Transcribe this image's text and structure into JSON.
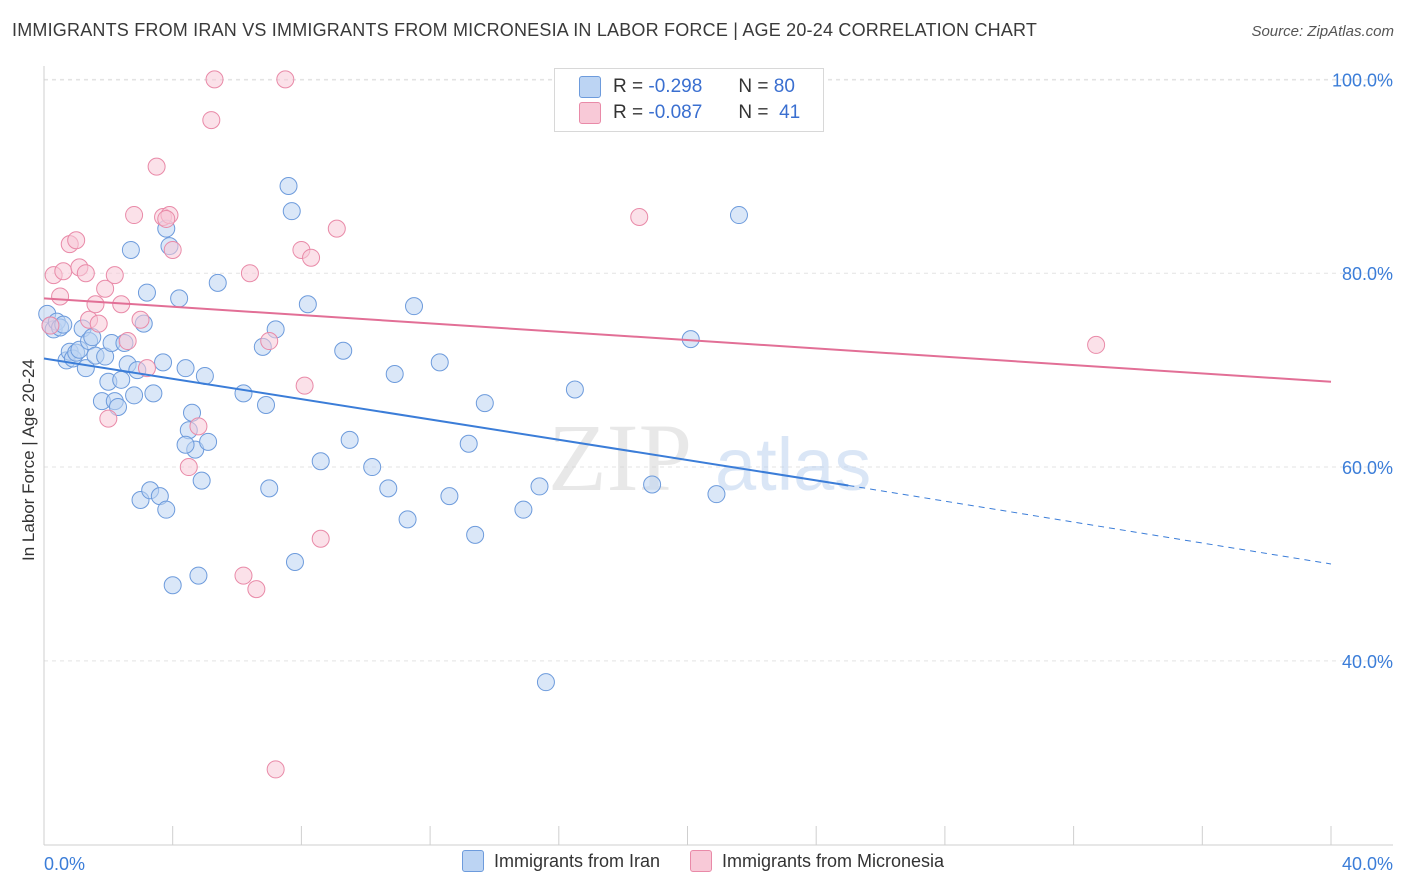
{
  "header": {
    "title": "IMMIGRANTS FROM IRAN VS IMMIGRANTS FROM MICRONESIA IN LABOR FORCE | AGE 20-24 CORRELATION CHART",
    "source": "Source: ZipAtlas.com"
  },
  "watermark": {
    "zip": "ZIP",
    "atlas": "atlas"
  },
  "stats": [
    {
      "r_label": "R =",
      "r_value": "-0.298",
      "n_label": "N =",
      "n_value": "80",
      "color": "#a9c7ef"
    },
    {
      "r_label": "R =",
      "r_value": "-0.087",
      "n_label": "N =",
      "n_value": "41",
      "color": "#f5b8c9"
    }
  ],
  "legend": [
    {
      "label": "Immigrants from Iran",
      "fill": "#bcd4f3",
      "stroke": "#6d9bdc"
    },
    {
      "label": "Immigrants from Micronesia",
      "fill": "#f8c9d7",
      "stroke": "#e98aa8"
    }
  ],
  "chart_data": {
    "type": "scatter",
    "title": "IMMIGRANTS FROM IRAN VS IMMIGRANTS FROM MICRONESIA IN LABOR FORCE | AGE 20-24 CORRELATION CHART",
    "xlabel": "",
    "ylabel": "In Labor Force | Age 20-24",
    "xlim": [
      0,
      40
    ],
    "ylim": [
      21,
      102
    ],
    "x_tick_labels": [
      "0.0%",
      "40.0%"
    ],
    "y_ticks": [
      40,
      60,
      80,
      100
    ],
    "y_tick_labels": [
      "40.0%",
      "60.0%",
      "80.0%",
      "100.0%"
    ],
    "grid": true,
    "legend_position": "bottom",
    "series": [
      {
        "name": "Immigrants from Iran",
        "color": "#3b7dd8",
        "fill": "#bcd4f3",
        "r": -0.298,
        "n": 80,
        "trend": {
          "x": [
            0,
            25
          ],
          "y": [
            71.2,
            58.1
          ],
          "dashed_x": [
            25,
            40
          ],
          "dashed_y": [
            58.1,
            50.0
          ]
        },
        "points": [
          [
            0.1,
            75.8
          ],
          [
            0.2,
            74.6
          ],
          [
            0.3,
            74.2
          ],
          [
            0.4,
            75.0
          ],
          [
            0.5,
            74.4
          ],
          [
            0.6,
            74.7
          ],
          [
            0.7,
            71.0
          ],
          [
            0.8,
            71.9
          ],
          [
            0.9,
            71.2
          ],
          [
            1.0,
            71.8
          ],
          [
            1.1,
            72.1
          ],
          [
            1.2,
            74.3
          ],
          [
            1.3,
            70.2
          ],
          [
            1.4,
            73.0
          ],
          [
            1.5,
            73.4
          ],
          [
            1.6,
            71.5
          ],
          [
            1.8,
            66.8
          ],
          [
            1.9,
            71.4
          ],
          [
            2.0,
            68.8
          ],
          [
            2.1,
            72.8
          ],
          [
            2.2,
            66.8
          ],
          [
            2.3,
            66.2
          ],
          [
            2.4,
            69.0
          ],
          [
            2.5,
            72.8
          ],
          [
            2.6,
            70.6
          ],
          [
            2.7,
            82.4
          ],
          [
            2.8,
            67.4
          ],
          [
            2.9,
            70.0
          ],
          [
            3.0,
            56.6
          ],
          [
            3.1,
            74.8
          ],
          [
            3.2,
            78.0
          ],
          [
            3.3,
            57.6
          ],
          [
            3.4,
            67.6
          ],
          [
            3.6,
            57.0
          ],
          [
            3.7,
            70.8
          ],
          [
            3.8,
            84.6
          ],
          [
            3.8,
            55.6
          ],
          [
            3.9,
            82.8
          ],
          [
            4.0,
            47.8
          ],
          [
            4.2,
            77.4
          ],
          [
            4.4,
            70.2
          ],
          [
            4.5,
            63.8
          ],
          [
            4.6,
            65.6
          ],
          [
            4.7,
            61.8
          ],
          [
            4.8,
            48.8
          ],
          [
            4.9,
            58.6
          ],
          [
            5.0,
            69.4
          ],
          [
            5.1,
            62.6
          ],
          [
            5.4,
            79.0
          ],
          [
            6.2,
            67.6
          ],
          [
            6.8,
            72.4
          ],
          [
            6.9,
            66.4
          ],
          [
            7.0,
            57.8
          ],
          [
            7.2,
            74.2
          ],
          [
            7.6,
            89.0
          ],
          [
            7.7,
            86.4
          ],
          [
            7.8,
            50.2
          ],
          [
            8.2,
            76.8
          ],
          [
            8.6,
            60.6
          ],
          [
            9.3,
            72.0
          ],
          [
            9.5,
            62.8
          ],
          [
            10.2,
            60.0
          ],
          [
            10.7,
            57.8
          ],
          [
            10.9,
            69.6
          ],
          [
            11.3,
            54.6
          ],
          [
            11.5,
            76.6
          ],
          [
            12.3,
            70.8
          ],
          [
            12.6,
            57.0
          ],
          [
            13.2,
            62.4
          ],
          [
            13.4,
            53.0
          ],
          [
            13.7,
            66.6
          ],
          [
            14.9,
            55.6
          ],
          [
            15.4,
            58.0
          ],
          [
            15.6,
            37.8
          ],
          [
            16.5,
            68.0
          ],
          [
            18.9,
            58.2
          ],
          [
            20.1,
            73.2
          ],
          [
            20.9,
            57.2
          ],
          [
            21.6,
            86.0
          ],
          [
            4.4,
            62.3
          ]
        ]
      },
      {
        "name": "Immigrants from Micronesia",
        "color": "#e26f96",
        "fill": "#f8c9d7",
        "r": -0.087,
        "n": 41,
        "trend": {
          "x": [
            0,
            40
          ],
          "y": [
            77.4,
            68.8
          ]
        },
        "points": [
          [
            0.2,
            74.6
          ],
          [
            0.3,
            79.8
          ],
          [
            0.5,
            77.6
          ],
          [
            0.6,
            80.2
          ],
          [
            0.8,
            83.0
          ],
          [
            1.0,
            83.4
          ],
          [
            1.1,
            80.6
          ],
          [
            1.3,
            80.0
          ],
          [
            1.4,
            75.2
          ],
          [
            1.6,
            76.8
          ],
          [
            1.7,
            74.8
          ],
          [
            1.9,
            78.4
          ],
          [
            2.0,
            65.0
          ],
          [
            2.2,
            79.8
          ],
          [
            2.4,
            76.8
          ],
          [
            2.6,
            73.0
          ],
          [
            2.8,
            86.0
          ],
          [
            3.0,
            75.2
          ],
          [
            3.2,
            70.2
          ],
          [
            3.5,
            91.0
          ],
          [
            3.7,
            85.8
          ],
          [
            3.9,
            86.0
          ],
          [
            4.0,
            82.4
          ],
          [
            4.5,
            60.0
          ],
          [
            4.8,
            64.2
          ],
          [
            5.2,
            95.8
          ],
          [
            5.3,
            100.0
          ],
          [
            6.2,
            48.8
          ],
          [
            6.4,
            80.0
          ],
          [
            6.6,
            47.4
          ],
          [
            7.0,
            73.0
          ],
          [
            7.2,
            28.8
          ],
          [
            7.5,
            100.0
          ],
          [
            8.0,
            82.4
          ],
          [
            8.1,
            68.4
          ],
          [
            8.3,
            81.6
          ],
          [
            8.6,
            52.6
          ],
          [
            9.1,
            84.6
          ],
          [
            18.5,
            85.8
          ],
          [
            32.7,
            72.6
          ],
          [
            3.8,
            85.6
          ]
        ]
      }
    ]
  }
}
